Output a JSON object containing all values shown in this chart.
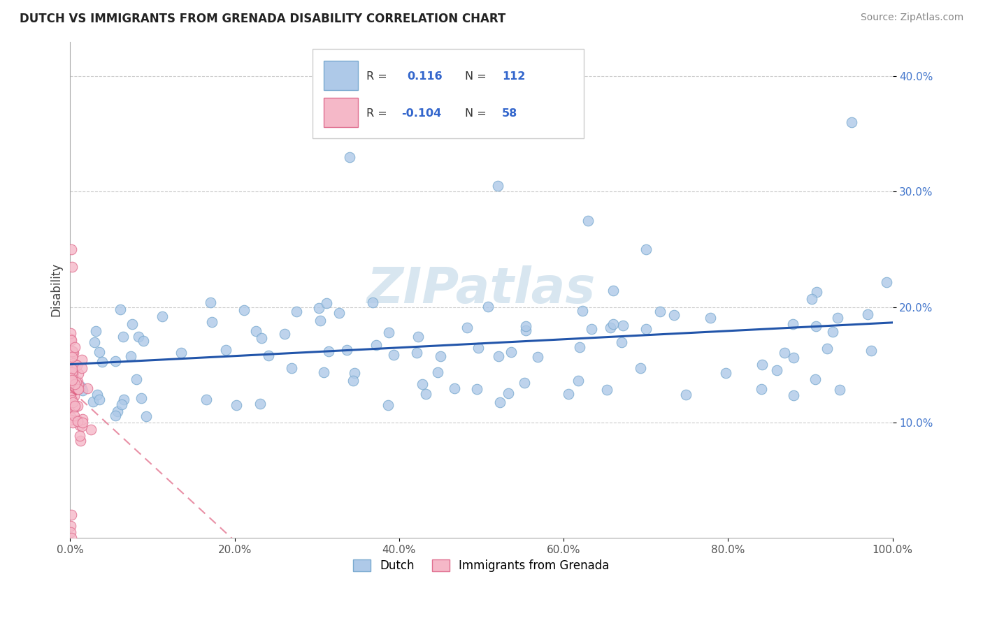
{
  "title": "DUTCH VS IMMIGRANTS FROM GRENADA DISABILITY CORRELATION CHART",
  "source": "Source: ZipAtlas.com",
  "ylabel": "Disability",
  "xlim": [
    0.0,
    1.0
  ],
  "ylim": [
    0.0,
    0.43
  ],
  "dutch_R": 0.116,
  "dutch_N": 112,
  "grenada_R": -0.104,
  "grenada_N": 58,
  "dutch_color": "#aec9e8",
  "dutch_edge": "#7aaad0",
  "grenada_color": "#f5b8c8",
  "grenada_edge": "#e07090",
  "dutch_line_color": "#2255aa",
  "grenada_line_color": "#dd5577",
  "watermark_color": "#d8e6f0",
  "background_color": "#ffffff",
  "grid_color": "#cccccc",
  "ytick_color": "#4477cc",
  "xtick_color": "#555555"
}
